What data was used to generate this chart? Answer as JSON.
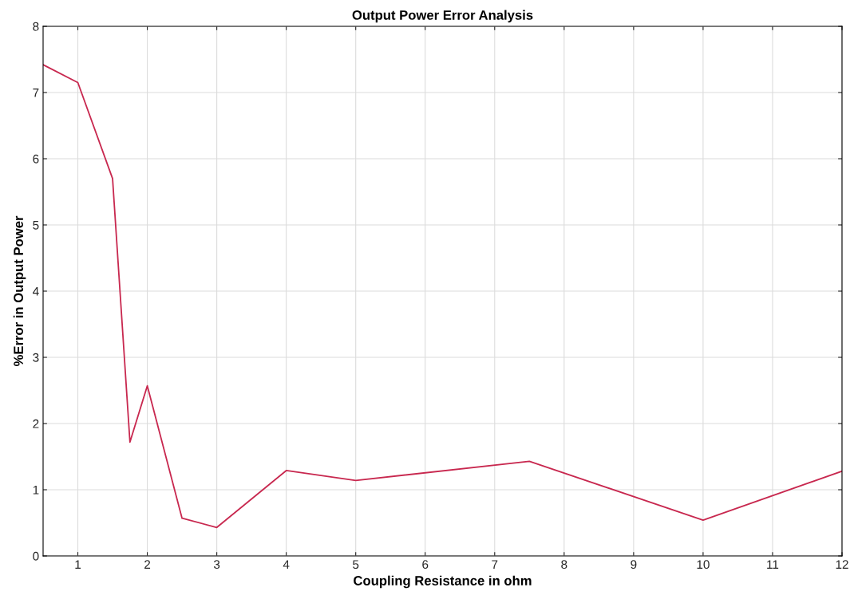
{
  "chart_data": {
    "type": "line",
    "title": "Output Power Error Analysis",
    "xlabel": "Coupling Resistance in ohm",
    "ylabel": "%Error in Output Power",
    "x": [
      0.5,
      1,
      1.5,
      1.75,
      2,
      2.5,
      3,
      4,
      5,
      7.5,
      10,
      12
    ],
    "series": [
      {
        "color": "#c8284f",
        "values": [
          7.42,
          7.15,
          5.7,
          1.72,
          2.57,
          0.57,
          0.43,
          1.29,
          1.14,
          1.43,
          0.54,
          1.28
        ]
      }
    ],
    "xlim": [
      0.5,
      12
    ],
    "xticks": [
      1,
      2,
      3,
      4,
      5,
      6,
      7,
      8,
      9,
      10,
      11,
      12
    ],
    "ylim": [
      0,
      8
    ],
    "yticks": [
      0,
      1,
      2,
      3,
      4,
      5,
      6,
      7,
      8
    ],
    "grid": true
  }
}
